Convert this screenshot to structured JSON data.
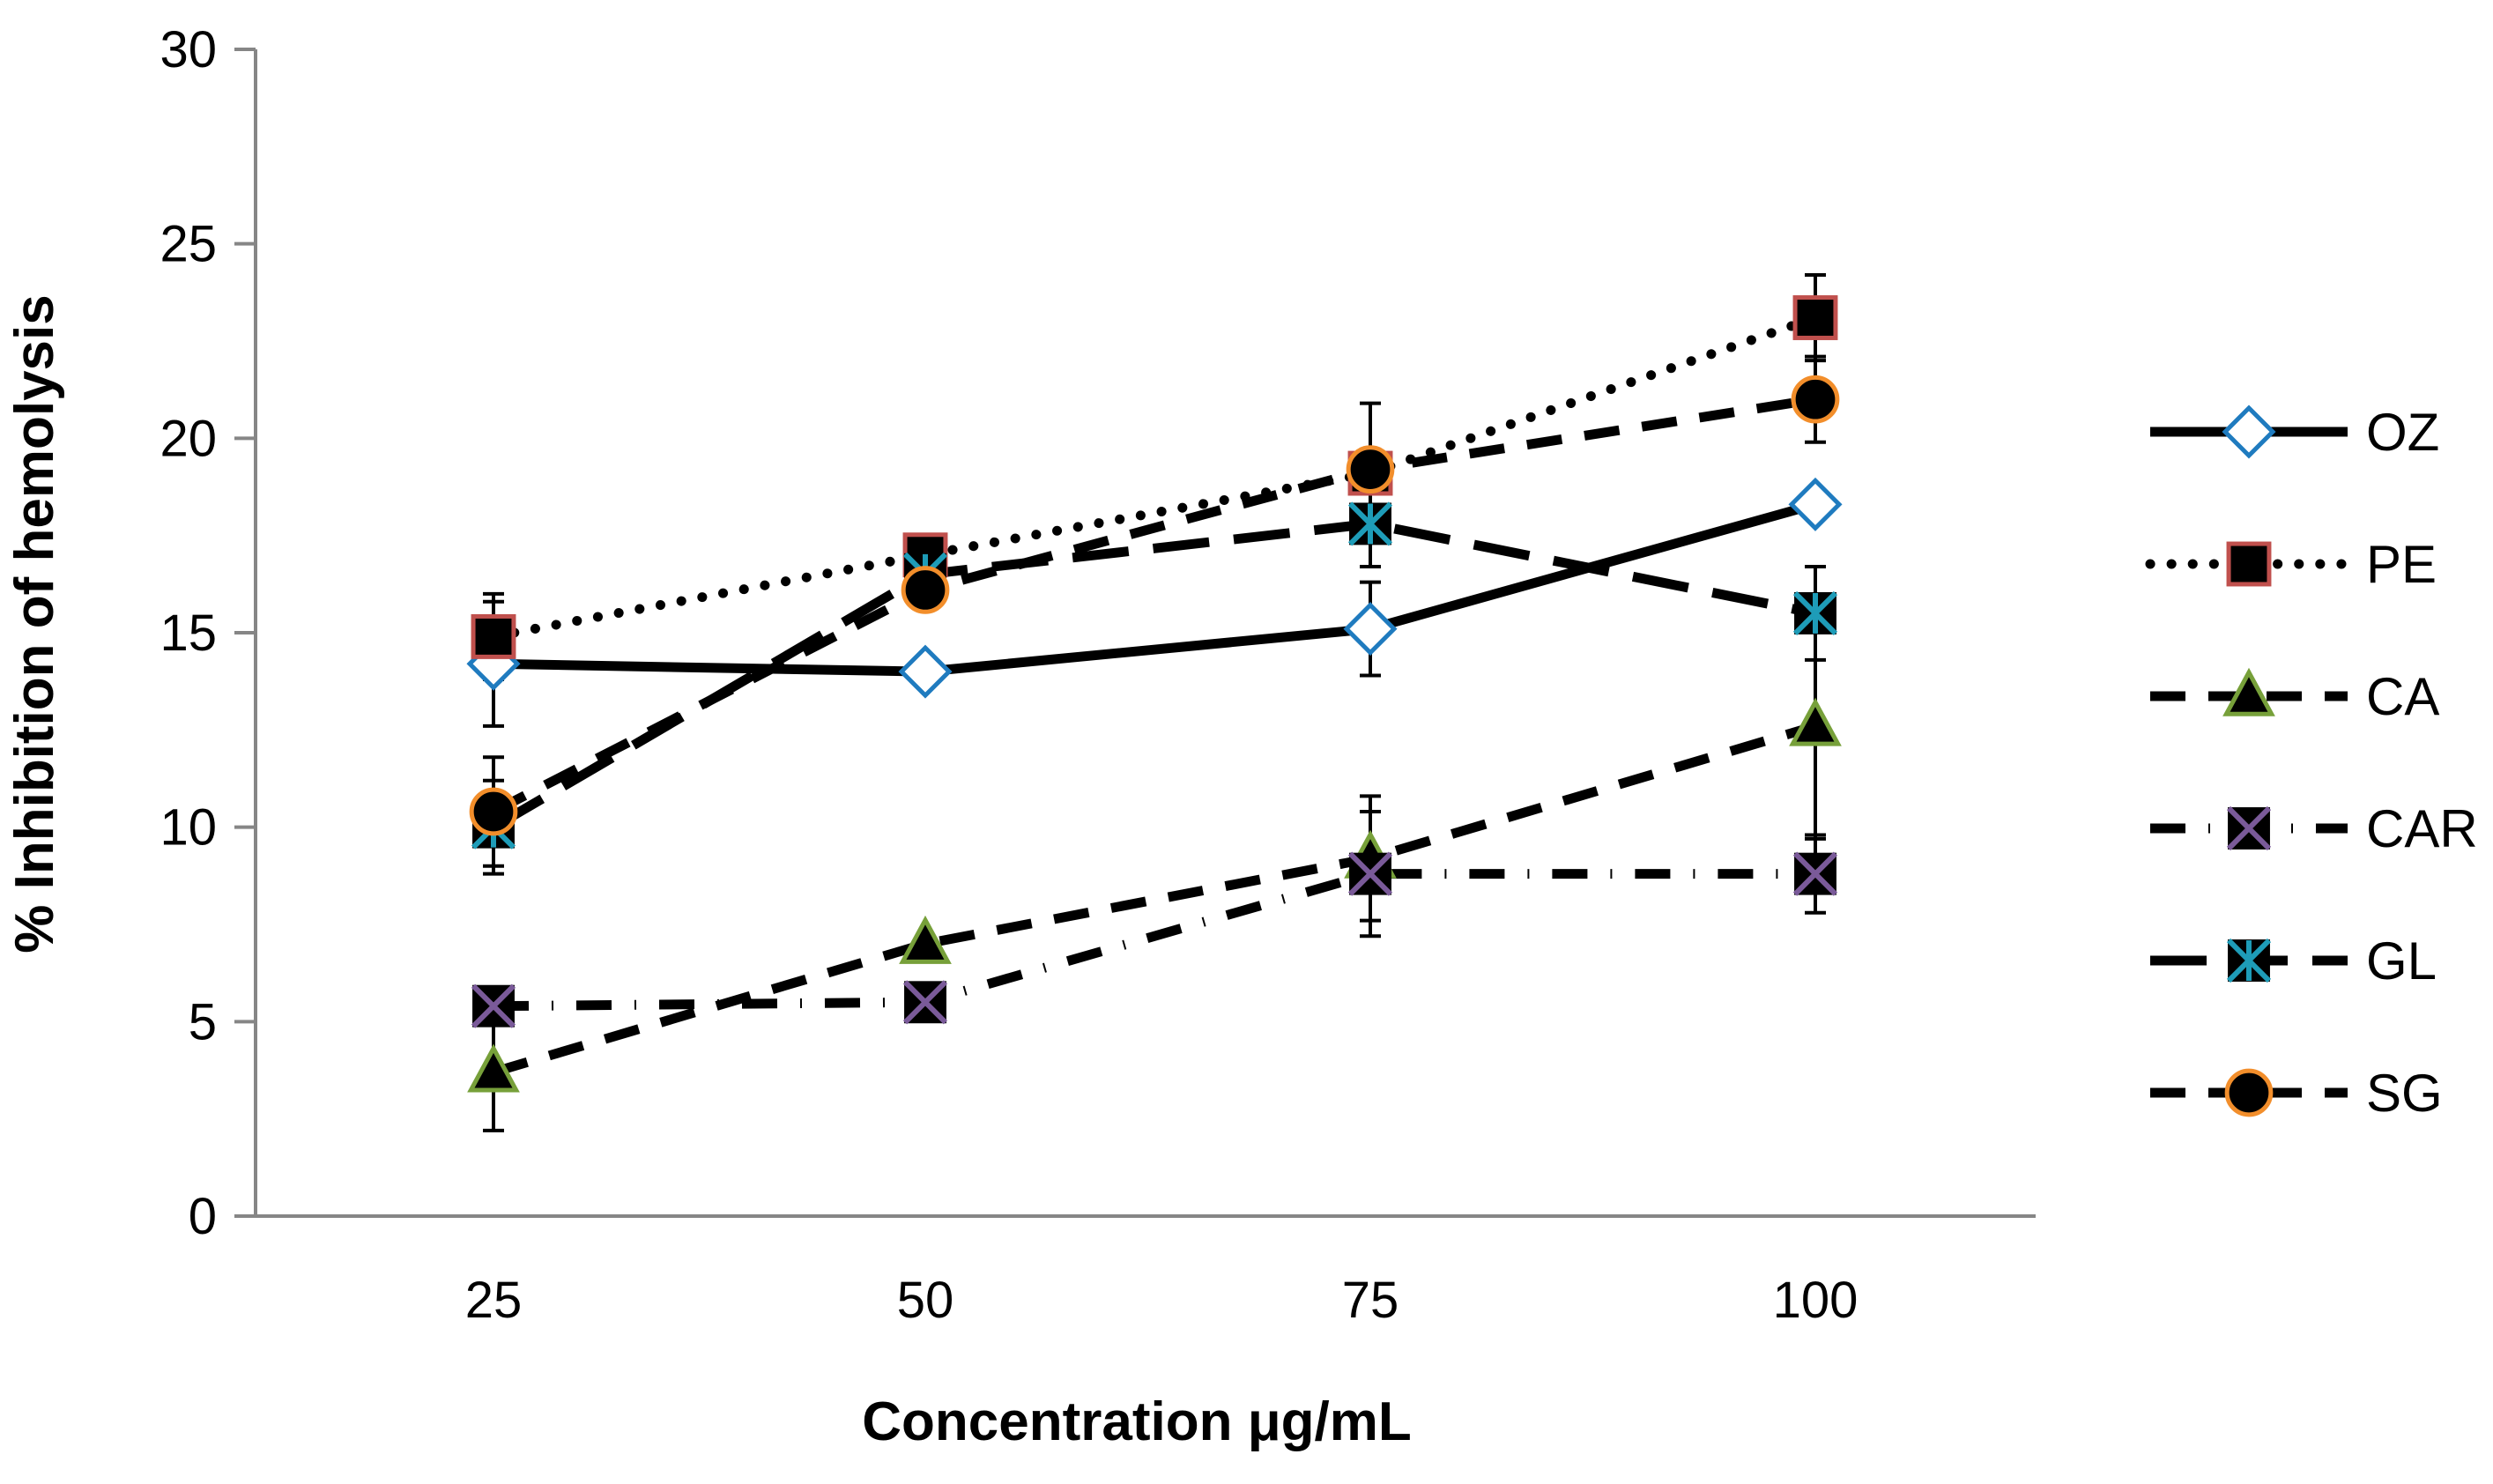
{
  "chart_data": {
    "type": "line",
    "title": "",
    "xlabel": "Concentration μg/mL",
    "ylabel": "% Inhibition of hemolysis",
    "categories": [
      "25",
      "50",
      "75",
      "100"
    ],
    "ylim": [
      0,
      30
    ],
    "yticks": [
      "0",
      "5",
      "10",
      "15",
      "20",
      "25",
      "30"
    ],
    "grid": false,
    "legend_position": "right",
    "series": [
      {
        "name": "OZ",
        "values": [
          14.2,
          14.0,
          15.1,
          18.3
        ],
        "errors": [
          1.6,
          0.0,
          1.2,
          0.0
        ],
        "marker": "diamond",
        "marker_fill": "#1f7bbf",
        "marker_edge": "#1f7bbf",
        "marker_hollow": true,
        "line_style": "solid"
      },
      {
        "name": "PE",
        "values": [
          14.9,
          17.0,
          19.1,
          23.1
        ],
        "errors": [
          1.1,
          0.0,
          0.0,
          1.1
        ],
        "marker": "square",
        "marker_fill": "#000000",
        "marker_edge": "#c0504d",
        "marker_hollow": false,
        "line_style": "dotted"
      },
      {
        "name": "CA",
        "values": [
          3.7,
          7.0,
          9.2,
          12.6
        ],
        "errors": [
          1.5,
          0.0,
          1.6,
          2.9
        ],
        "marker": "triangle",
        "marker_fill": "#000000",
        "marker_edge": "#77a03a",
        "marker_hollow": false,
        "line_style": "dashed"
      },
      {
        "name": "CAR",
        "values": [
          5.4,
          5.5,
          8.8,
          8.8
        ],
        "errors": [
          0.0,
          0.0,
          1.6,
          1.0
        ],
        "marker": "x-square",
        "marker_fill": "#7a5a99",
        "marker_edge": "#7a5a99",
        "marker_hollow": true,
        "line_style": "dashdot"
      },
      {
        "name": "GL",
        "values": [
          10.0,
          16.5,
          17.8,
          15.5
        ],
        "errors": [
          1.2,
          0.0,
          1.1,
          1.2
        ],
        "marker": "star",
        "marker_fill": "#1e9cb8",
        "marker_edge": "#1e9cb8",
        "marker_hollow": true,
        "line_style": "longdash"
      },
      {
        "name": "SG",
        "values": [
          10.4,
          16.1,
          19.2,
          21.0
        ],
        "errors": [
          1.4,
          0.0,
          1.7,
          1.1
        ],
        "marker": "circle",
        "marker_fill": "#000000",
        "marker_edge": "#f28e2b",
        "marker_hollow": false,
        "line_style": "dashed"
      }
    ]
  }
}
